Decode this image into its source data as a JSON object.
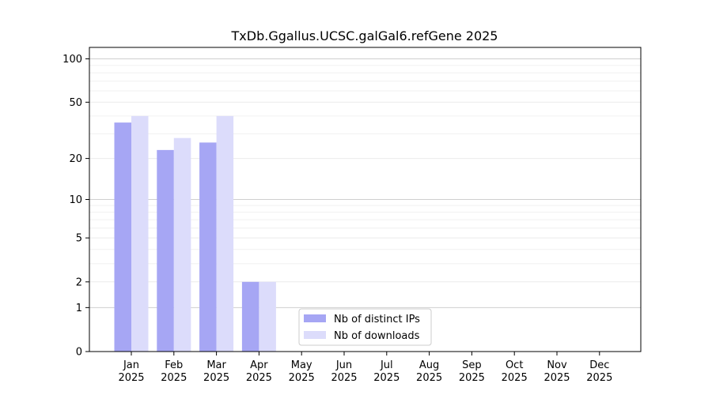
{
  "chart_data": {
    "type": "bar",
    "title": "TxDb.Ggallus.UCSC.galGal6.refGene 2025",
    "xlabel": "",
    "ylabel": "",
    "yscale": "log(1+y)",
    "ylim": [
      0,
      120
    ],
    "yticks": [
      0,
      1,
      2,
      5,
      10,
      20,
      50,
      100
    ],
    "ytick_labels": [
      "0",
      "1",
      "2",
      "5",
      "10",
      "20",
      "50",
      "100"
    ],
    "grid": "y-axis, major and minor",
    "legend_position": "lower-center",
    "categories": [
      "Jan\n2025",
      "Feb\n2025",
      "Mar\n2025",
      "Apr\n2025",
      "May\n2025",
      "Jun\n2025",
      "Jul\n2025",
      "Aug\n2025",
      "Sep\n2025",
      "Oct\n2025",
      "Nov\n2025",
      "Dec\n2025"
    ],
    "series": [
      {
        "name": "Nb of distinct IPs",
        "color": "#a6a6f4",
        "values": [
          36,
          23,
          26,
          2,
          0,
          0,
          0,
          0,
          0,
          0,
          0,
          0
        ]
      },
      {
        "name": "Nb of downloads",
        "color": "#dcdcfb",
        "values": [
          40,
          28,
          40,
          2,
          0,
          0,
          0,
          0,
          0,
          0,
          0,
          0
        ]
      }
    ]
  }
}
